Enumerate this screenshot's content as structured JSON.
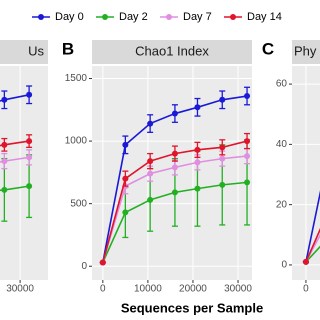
{
  "chart_data": [
    {
      "type": "line",
      "title": "Us",
      "x": [
        21000,
        26500,
        32000
      ],
      "series": [
        {
          "name": "Day 0",
          "color": "#1a1ad6",
          "values": [
            1280,
            1330,
            1370
          ],
          "errors": [
            70,
            70,
            70
          ]
        },
        {
          "name": "Day 2",
          "color": "#22b022",
          "values": [
            590,
            610,
            640
          ],
          "errors": [
            250,
            250,
            250
          ]
        },
        {
          "name": "Day 7",
          "color": "#e08ee0",
          "values": [
            800,
            840,
            870
          ],
          "errors": [
            60,
            60,
            60
          ]
        },
        {
          "name": "Day 14",
          "color": "#e0142a",
          "values": [
            940,
            970,
            1000
          ],
          "errors": [
            50,
            50,
            50
          ]
        }
      ],
      "xlim": [
        -16700,
        36200
      ],
      "ylim": [
        -110,
        1600
      ],
      "xticks": [
        {
          "value": 30000,
          "label": "30000"
        }
      ],
      "grid": true
    },
    {
      "type": "line",
      "panel_label": "B",
      "title": "Chao1 Index",
      "xlabel": "Sequences per Sample",
      "x": [
        0,
        5000,
        10500,
        16000,
        21000,
        26500,
        32000
      ],
      "series": [
        {
          "name": "Day 0",
          "color": "#1a1ad6",
          "values": [
            30,
            970,
            1140,
            1220,
            1270,
            1330,
            1360
          ],
          "errors": [
            0,
            70,
            70,
            70,
            70,
            70,
            70
          ]
        },
        {
          "name": "Day 2",
          "color": "#22b022",
          "values": [
            30,
            430,
            530,
            590,
            620,
            650,
            670
          ],
          "errors": [
            0,
            200,
            250,
            270,
            300,
            320,
            340
          ]
        },
        {
          "name": "Day 7",
          "color": "#e08ee0",
          "values": [
            30,
            640,
            740,
            790,
            830,
            860,
            880
          ],
          "errors": [
            0,
            60,
            60,
            60,
            60,
            60,
            60
          ]
        },
        {
          "name": "Day 14",
          "color": "#e0142a",
          "values": [
            30,
            700,
            840,
            900,
            930,
            950,
            1000
          ],
          "errors": [
            0,
            60,
            60,
            60,
            60,
            60,
            60
          ]
        }
      ],
      "xlim": [
        -2400,
        33100
      ],
      "ylim": [
        -110,
        1600
      ],
      "xticks": [
        0,
        10000,
        20000,
        30000
      ],
      "yticks": [
        0,
        500,
        1000,
        1500
      ],
      "grid": true
    },
    {
      "type": "line",
      "panel_label": "C",
      "title": "Phy",
      "x": [
        0,
        5000
      ],
      "series": [
        {
          "name": "Day 0",
          "color": "#1a1ad6",
          "values": [
            1,
            37
          ],
          "errors": [
            0,
            3
          ]
        },
        {
          "name": "Day 2",
          "color": "#22b022",
          "values": [
            1,
            9
          ],
          "errors": [
            0,
            4
          ]
        },
        {
          "name": "Day 7",
          "color": "#e08ee0",
          "values": [
            1,
            15
          ],
          "errors": [
            0,
            2
          ]
        },
        {
          "name": "Day 14",
          "color": "#e0142a",
          "values": [
            1,
            18
          ],
          "errors": [
            0,
            2
          ]
        }
      ],
      "xlim": [
        -3100,
        38700
      ],
      "ylim": [
        -5,
        66
      ],
      "xticks": [
        0
      ],
      "yticks": [
        0,
        20,
        40,
        60
      ],
      "grid": true
    }
  ]
}
